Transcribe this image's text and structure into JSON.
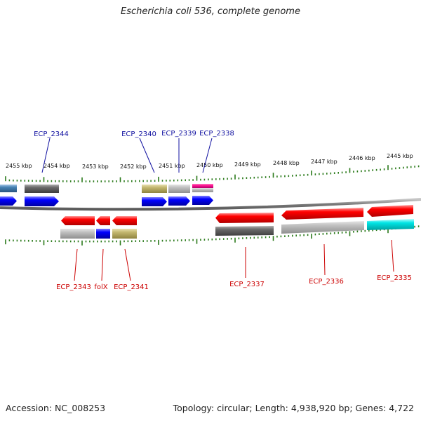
{
  "title": "Escherichia coli 536, complete genome",
  "footer": {
    "accession": "Accession: NC_008253",
    "summary": "Topology: circular; Length: 4,938,920 bp; Genes: 4,722"
  },
  "colors": {
    "forward_label": "#1010a0",
    "reverse_label": "#cc0000",
    "tick": "#2a7a1a",
    "backbone": "#8a8a8a"
  },
  "ruler": [
    {
      "label": "2455 kbp"
    },
    {
      "label": "2454 kbp"
    },
    {
      "label": "2453 kbp"
    },
    {
      "label": "2452 kbp"
    },
    {
      "label": "2451 kbp"
    },
    {
      "label": "2450 kbp"
    },
    {
      "label": "2449 kbp"
    },
    {
      "label": "2448 kbp"
    },
    {
      "label": "2447 kbp"
    },
    {
      "label": "2446 kbp"
    },
    {
      "label": "2445 kbp"
    }
  ],
  "forward_labels": [
    {
      "text": "ECP_2344"
    },
    {
      "text": "ECP_2340"
    },
    {
      "text": "ECP_2339"
    },
    {
      "text": "ECP_2338"
    }
  ],
  "reverse_labels": [
    {
      "text": "ECP_2343"
    },
    {
      "text": "folX"
    },
    {
      "text": "ECP_2341"
    },
    {
      "text": "ECP_2337"
    },
    {
      "text": "ECP_2336"
    },
    {
      "text": "ECP_2335"
    }
  ]
}
